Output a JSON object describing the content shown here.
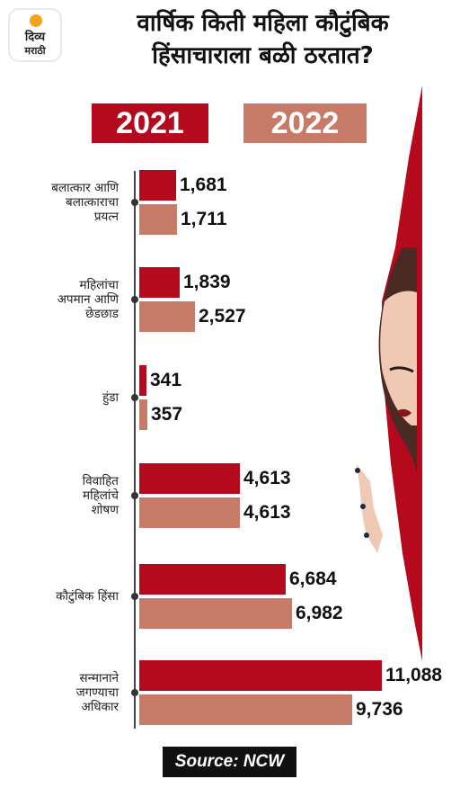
{
  "brand": {
    "logo_line1": "दिव्य",
    "logo_line2": "मराठी"
  },
  "header": {
    "title_line1": "वार्षिक किती महिला कौटुंबिक",
    "title_line2": "हिंसाचाराला बळी ठरतात?"
  },
  "legend": {
    "y2021": "2021",
    "y2022": "2022"
  },
  "colors": {
    "y2021": "#b50a1e",
    "y2022": "#c77a68"
  },
  "chart_data": {
    "type": "bar",
    "orientation": "horizontal",
    "categories": [
      "बलात्कार आणि\nबलात्काराचा\nप्रयत्न",
      "महिलांचा\nअपमान आणि\nछेडछाड",
      "हुंडा",
      "विवाहित\nमहिलांचे\nशोषण",
      "कौटुंबिक हिंसा",
      "सन्मानाने\nजगण्याचा\nअधिकार"
    ],
    "series": [
      {
        "name": "2021",
        "values": [
          1681,
          1839,
          341,
          4613,
          6684,
          11088
        ],
        "labels": [
          "1,681",
          "1,839",
          "341",
          "4,613",
          "6,684",
          "11,088"
        ]
      },
      {
        "name": "2022",
        "values": [
          1711,
          2527,
          357,
          4613,
          6982,
          9736
        ],
        "labels": [
          "1,711",
          "2,527",
          "357",
          "4,613",
          "6,982",
          "9,736"
        ]
      }
    ],
    "legend": "top",
    "grid": false
  },
  "footer": {
    "source": "Source: NCW"
  }
}
